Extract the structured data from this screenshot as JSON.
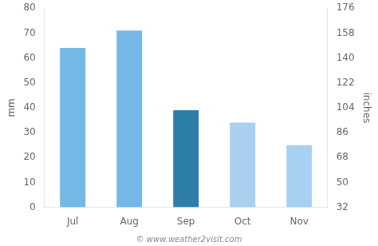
{
  "chart_data": {
    "type": "bar",
    "categories": [
      "Jul",
      "Aug",
      "Sep",
      "Oct",
      "Nov"
    ],
    "values": [
      64,
      71,
      39,
      34,
      25
    ],
    "colors": [
      "#74b8e8",
      "#74b8e8",
      "#2e7fa8",
      "#a8d0f0",
      "#a8d0f0"
    ],
    "ylabel": "mm",
    "y2label": "inches",
    "ylim": [
      0,
      80
    ],
    "yticks": [
      0,
      10,
      20,
      30,
      40,
      50,
      60,
      70,
      80
    ],
    "y2lim": [
      32,
      176
    ],
    "y2ticks": [
      32,
      50,
      68,
      86,
      104,
      122,
      140,
      158,
      176
    ],
    "grid": false,
    "annotations": [
      "© www.weather2visit.com"
    ]
  }
}
